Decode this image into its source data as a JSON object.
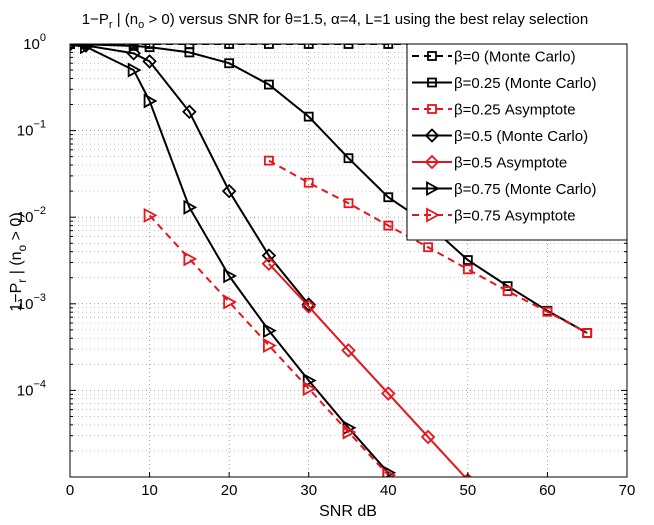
{
  "chart_data": {
    "type": "line",
    "title": "1−P_r | (n_o > 0)  versus SNR for θ=1.5, α=4, L=1  using  the best relay selection",
    "title_parts": [
      "1−P",
      "r",
      " | (n",
      "o",
      " > 0)  versus SNR for θ=1.5, α=4, L=1  using  the best relay selection"
    ],
    "xlabel": "SNR dB",
    "ylabel": "1−P_r | (n_o > 0)",
    "ylabel_parts": [
      "1−P",
      "r",
      " | (n",
      "o",
      " > 0)"
    ],
    "x_scale": "linear",
    "y_scale": "log",
    "xlim": [
      0,
      70
    ],
    "ylim_exponent": [
      -5,
      0
    ],
    "x_ticks": [
      0,
      10,
      20,
      30,
      40,
      50,
      60,
      70
    ],
    "x_tick_labels": [
      "0",
      "10",
      "20",
      "30",
      "40",
      "50",
      "60",
      "70"
    ],
    "y_ticks_exponent": [
      -4,
      -3,
      -2,
      -1,
      0
    ],
    "y_tick_labels": [
      {
        "base": "10",
        "exp": "−4"
      },
      {
        "base": "10",
        "exp": "−3"
      },
      {
        "base": "10",
        "exp": "−2"
      },
      {
        "base": "10",
        "exp": "−1"
      },
      {
        "base": "10",
        "exp": "0"
      }
    ],
    "grid": true,
    "legend_position": "top-right",
    "series": [
      {
        "name": "β=0 (Monte Carlo)",
        "color": "#000000",
        "dash": "dashed",
        "marker": "square",
        "x": [
          0,
          2,
          8,
          10,
          15,
          20,
          25,
          30,
          35,
          40,
          45,
          50,
          55,
          60,
          65
        ],
        "y": [
          1,
          1,
          1,
          1,
          1,
          1,
          1,
          1,
          1,
          1,
          1,
          1,
          1,
          1,
          1
        ]
      },
      {
        "name": "β=0.25 (Monte Carlo)",
        "color": "#000000",
        "dash": "solid",
        "marker": "square",
        "x": [
          0,
          2,
          8,
          10,
          15,
          20,
          25,
          30,
          35,
          40,
          45,
          50,
          55,
          60,
          65
        ],
        "y": [
          1,
          0.99,
          0.95,
          0.92,
          0.8,
          0.6,
          0.34,
          0.145,
          0.048,
          0.017,
          0.0083,
          0.0032,
          0.0016,
          0.00083,
          0.00046
        ]
      },
      {
        "name": "β=0.25 Asymptote",
        "color": "#e8141c",
        "dash": "dashed",
        "marker": "square",
        "x": [
          25,
          30,
          35,
          40,
          45,
          50,
          55,
          60,
          65
        ],
        "y": [
          0.045,
          0.025,
          0.0145,
          0.008,
          0.0045,
          0.0025,
          0.0014,
          0.00081,
          0.00046
        ]
      },
      {
        "name": "β=0.5 (Monte Carlo)",
        "color": "#000000",
        "dash": "solid",
        "marker": "diamond",
        "x": [
          0,
          2,
          8,
          10,
          15,
          20,
          25,
          30
        ],
        "y": [
          0.99,
          0.96,
          0.78,
          0.63,
          0.165,
          0.02,
          0.0036,
          0.00098
        ]
      },
      {
        "name": "β=0.5 Asymptote",
        "color": "#e8141c",
        "dash": "solid",
        "marker": "diamond",
        "x": [
          25,
          30,
          35,
          40,
          45,
          50
        ],
        "y": [
          0.0029,
          0.00093,
          0.00029,
          9.2e-05,
          2.9e-05,
          9.2e-06
        ]
      },
      {
        "name": "β=0.75 (Monte Carlo)",
        "color": "#000000",
        "dash": "solid",
        "marker": "triangle-right",
        "x": [
          0,
          2,
          8,
          10,
          15,
          20,
          25,
          30,
          35,
          40
        ],
        "y": [
          0.98,
          0.93,
          0.5,
          0.22,
          0.013,
          0.0021,
          0.00049,
          0.00013,
          3.7e-05,
          1.12e-05
        ]
      },
      {
        "name": "β=0.75  Asymptote",
        "color": "#e8141c",
        "dash": "dashed",
        "marker": "triangle-right",
        "x": [
          10,
          15,
          20,
          25,
          30,
          35,
          40
        ],
        "y": [
          0.0105,
          0.0033,
          0.00105,
          0.00033,
          0.000105,
          3.3e-05,
          1.05e-05
        ]
      }
    ]
  }
}
